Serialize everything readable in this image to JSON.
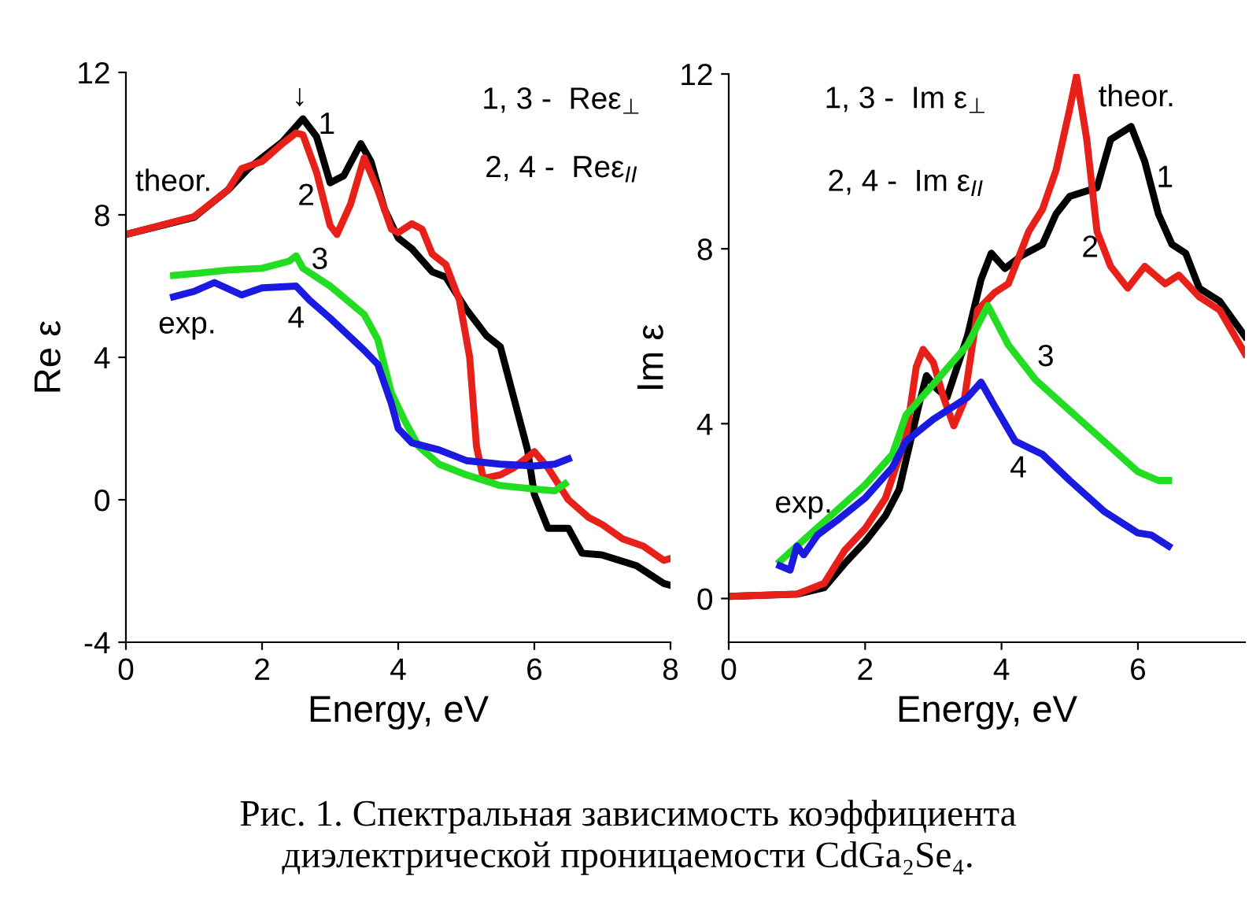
{
  "chart_data": [
    {
      "type": "line",
      "xlabel": "Energy, eV",
      "ylabel": "Re ε",
      "xlim": [
        0,
        8
      ],
      "ylim": [
        -4,
        12
      ],
      "xticks": [
        0,
        2,
        4,
        6,
        8
      ],
      "yticks": [
        -4,
        0,
        4,
        8,
        12
      ],
      "grid": false,
      "marker": "none",
      "line_style": "solid",
      "series": [
        {
          "color": "#000000",
          "x": [
            0,
            1,
            1.5,
            1.8,
            2,
            2.3,
            2.6,
            2.8,
            3,
            3.2,
            3.45,
            3.6,
            3.8,
            4,
            4.2,
            4.5,
            4.7,
            5,
            5.3,
            5.5,
            5.7,
            5.9,
            6,
            6.2,
            6.5,
            6.7,
            7,
            7.5,
            7.9,
            8
          ],
          "values": [
            7.45,
            7.93,
            8.7,
            9.3,
            9.6,
            10.05,
            10.7,
            10.2,
            8.9,
            9.1,
            10.0,
            9.5,
            8.15,
            7.35,
            7.05,
            6.4,
            6.25,
            5.35,
            4.6,
            4.3,
            2.85,
            1.4,
            0.15,
            -0.8,
            -0.8,
            -1.5,
            -1.55,
            -1.85,
            -2.35,
            -2.4
          ]
        },
        {
          "color": "#e8201a",
          "x": [
            0,
            1,
            1.5,
            1.7,
            2,
            2.3,
            2.5,
            2.6,
            2.8,
            3,
            3.1,
            3.3,
            3.5,
            3.7,
            3.9,
            4,
            4.2,
            4.35,
            4.5,
            4.7,
            4.9,
            5.05,
            5.15,
            5.25,
            5.5,
            5.7,
            6,
            6.2,
            6.5,
            6.8,
            7,
            7.3,
            7.6,
            7.9,
            8
          ],
          "values": [
            7.45,
            7.95,
            8.7,
            9.3,
            9.5,
            10.0,
            10.3,
            10.25,
            9.2,
            7.7,
            7.45,
            8.3,
            9.6,
            8.7,
            7.6,
            7.5,
            7.75,
            7.6,
            6.9,
            6.6,
            5.6,
            4.0,
            1.5,
            0.6,
            0.7,
            0.9,
            1.35,
            0.9,
            0.0,
            -0.5,
            -0.7,
            -1.1,
            -1.3,
            -1.7,
            -1.65
          ]
        },
        {
          "color": "#22dd22",
          "x": [
            0.7,
            1,
            1.5,
            2,
            2.4,
            2.5,
            2.6,
            3,
            3.5,
            3.7,
            3.9,
            4.1,
            4.3,
            4.6,
            5,
            5.5,
            6,
            6.3,
            6.45
          ],
          "values": [
            6.3,
            6.35,
            6.45,
            6.5,
            6.7,
            6.85,
            6.5,
            6.0,
            5.2,
            4.5,
            3.0,
            2.2,
            1.5,
            1.0,
            0.7,
            0.4,
            0.3,
            0.25,
            0.45
          ]
        },
        {
          "color": "#1a1ae0",
          "x": [
            0.7,
            1,
            1.3,
            1.7,
            2,
            2.5,
            2.7,
            3,
            3.5,
            3.7,
            3.9,
            4,
            4.2,
            4.6,
            5,
            5.5,
            6,
            6.3,
            6.5
          ],
          "values": [
            5.7,
            5.85,
            6.1,
            5.75,
            5.95,
            6.0,
            5.6,
            5.1,
            4.2,
            3.8,
            2.7,
            2.0,
            1.6,
            1.4,
            1.1,
            1.0,
            0.95,
            1.0,
            1.15
          ]
        }
      ],
      "annotations": [
        "1, 3 -  Reε$_{⊥}$",
        "2, 4 -  Reε$_{II}$",
        "↓",
        "theor.",
        "exp.",
        "1",
        "2",
        "3",
        "4"
      ]
    },
    {
      "type": "line",
      "xlabel": "Energy, eV",
      "ylabel": "Im ε",
      "xlim": [
        0,
        7.57
      ],
      "ylim": [
        -1,
        12
      ],
      "xticks": [
        0,
        2,
        4,
        6
      ],
      "yticks": [
        0,
        4,
        8,
        12
      ],
      "grid": false,
      "marker": "none",
      "line_style": "solid",
      "series": [
        {
          "color": "#000000",
          "x": [
            0,
            1,
            1.4,
            1.7,
            2,
            2.3,
            2.5,
            2.65,
            2.8,
            2.9,
            3.05,
            3.2,
            3.5,
            3.7,
            3.85,
            4.05,
            4.3,
            4.6,
            4.8,
            5,
            5.2,
            5.4,
            5.6,
            5.9,
            6.1,
            6.3,
            6.5,
            6.7,
            6.9,
            7.2,
            7.57
          ],
          "values": [
            0.05,
            0.1,
            0.25,
            0.8,
            1.3,
            1.9,
            2.5,
            3.5,
            4.5,
            5.1,
            4.8,
            4.6,
            6.0,
            7.3,
            7.9,
            7.55,
            7.85,
            8.1,
            8.8,
            9.2,
            9.3,
            9.4,
            10.5,
            10.8,
            10.0,
            8.8,
            8.1,
            7.9,
            7.1,
            6.8,
            6.0
          ]
        },
        {
          "color": "#e8201a",
          "x": [
            0,
            1,
            1.4,
            1.7,
            2,
            2.3,
            2.6,
            2.75,
            2.85,
            3,
            3.15,
            3.3,
            3.45,
            3.65,
            3.9,
            4.1,
            4.4,
            4.6,
            4.8,
            5,
            5.1,
            5.25,
            5.4,
            5.6,
            5.85,
            6.1,
            6.4,
            6.6,
            6.9,
            7.2,
            7.57
          ],
          "values": [
            0.05,
            0.1,
            0.35,
            1.1,
            1.6,
            2.3,
            3.7,
            5.3,
            5.7,
            5.4,
            4.6,
            3.95,
            4.5,
            6.6,
            7.0,
            7.2,
            8.4,
            8.9,
            9.8,
            11.2,
            11.95,
            10.5,
            8.4,
            7.6,
            7.1,
            7.6,
            7.2,
            7.4,
            6.9,
            6.6,
            5.6
          ]
        },
        {
          "color": "#22dd22",
          "x": [
            0.75,
            1,
            1.5,
            2,
            2.4,
            2.6,
            3,
            3.5,
            3.8,
            4.1,
            4.5,
            5,
            5.5,
            6,
            6.3,
            6.45
          ],
          "values": [
            0.85,
            1.2,
            1.9,
            2.6,
            3.3,
            4.2,
            4.9,
            5.8,
            6.7,
            5.8,
            5.0,
            4.3,
            3.6,
            2.9,
            2.7,
            2.7
          ]
        },
        {
          "color": "#1a1ae0",
          "x": [
            0.75,
            0.9,
            1,
            1.1,
            1.3,
            1.6,
            2,
            2.4,
            2.6,
            3,
            3.5,
            3.7,
            3.9,
            4.2,
            4.6,
            5,
            5.5,
            6,
            6.2,
            6.45
          ],
          "values": [
            0.75,
            0.65,
            1.2,
            1.0,
            1.45,
            1.8,
            2.3,
            3.0,
            3.6,
            4.1,
            4.6,
            4.95,
            4.4,
            3.6,
            3.3,
            2.7,
            2.0,
            1.5,
            1.45,
            1.2
          ]
        }
      ],
      "annotations": [
        "1, 3 -  Im ε$_{⊥}$",
        "2, 4 -  Im ε$_{II}$",
        "theor.",
        "exp.",
        "1",
        "2",
        "3",
        "4",
        "Рис. 1. Спектральная зависимость коэффициента\nдиэлектрической проницаемости CdGa₂Se₄."
      ]
    }
  ]
}
